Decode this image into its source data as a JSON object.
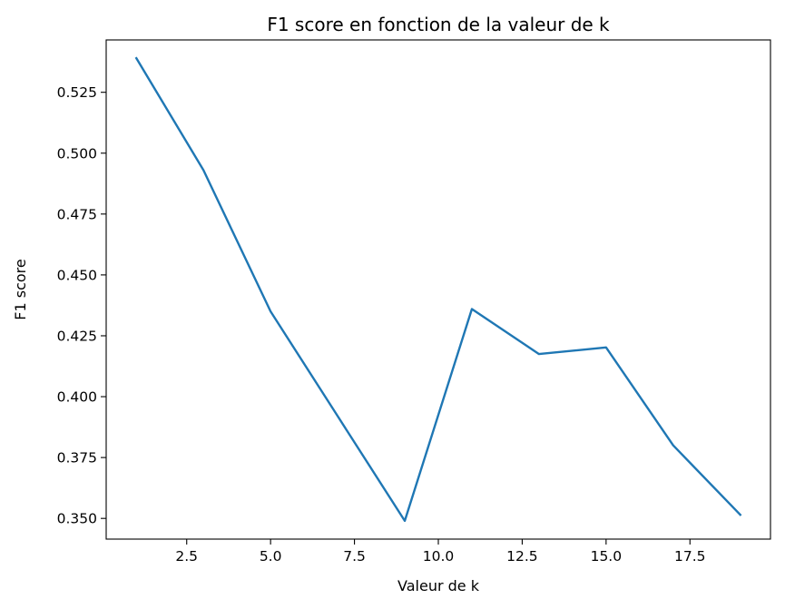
{
  "chart_data": {
    "type": "line",
    "title": "F1 score en fonction de la valeur de k",
    "xlabel": "Valeur de k",
    "ylabel": "F1 score",
    "xlim": [
      0.1,
      19.9
    ],
    "ylim": [
      0.3415,
      0.5465
    ],
    "xticks": [
      2.5,
      5.0,
      7.5,
      10.0,
      12.5,
      15.0,
      17.5
    ],
    "xtick_labels": [
      "2.5",
      "5.0",
      "7.5",
      "10.0",
      "12.5",
      "15.0",
      "17.5"
    ],
    "yticks": [
      0.35,
      0.375,
      0.4,
      0.425,
      0.45,
      0.475,
      0.5,
      0.525
    ],
    "ytick_labels": [
      "0.350",
      "0.375",
      "0.400",
      "0.425",
      "0.450",
      "0.475",
      "0.500",
      "0.525"
    ],
    "grid": false,
    "series": [
      {
        "color": "#1f77b4",
        "x": [
          1,
          3,
          5,
          7,
          9,
          11,
          13,
          15,
          17,
          19
        ],
        "y": [
          0.539,
          0.493,
          0.435,
          0.392,
          0.349,
          0.436,
          0.4175,
          0.4202,
          0.38,
          0.3515
        ]
      }
    ]
  }
}
